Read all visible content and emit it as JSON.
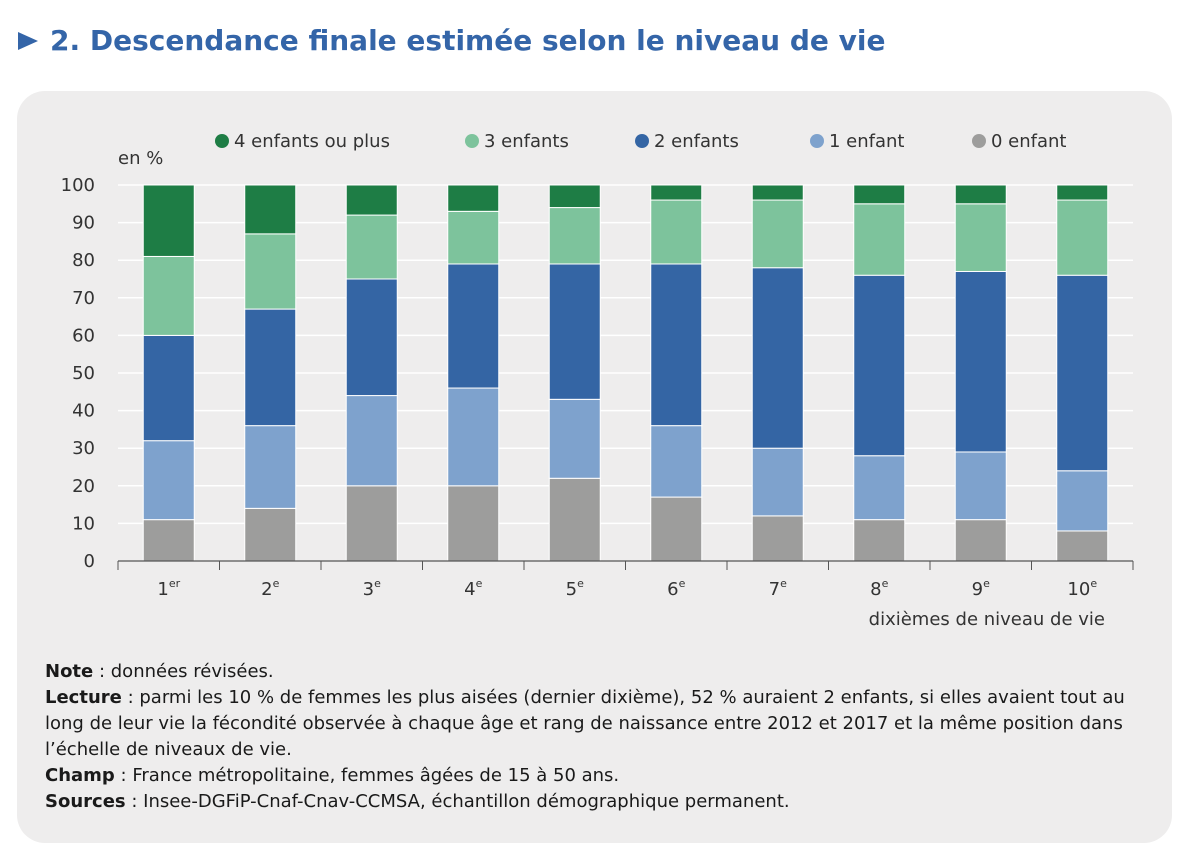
{
  "title": "2. Descendance finale estimée selon le niveau de vie",
  "chart_data": {
    "type": "bar",
    "stacked": true,
    "ylabel": "en %",
    "xlabel": "dixièmes de niveau de vie",
    "ylim": [
      0,
      100
    ],
    "yticks": [
      0,
      10,
      20,
      30,
      40,
      50,
      60,
      70,
      80,
      90,
      100
    ],
    "grid": true,
    "legend_position": "top",
    "categories": [
      {
        "num": "1",
        "sup": "er"
      },
      {
        "num": "2",
        "sup": "e"
      },
      {
        "num": "3",
        "sup": "e"
      },
      {
        "num": "4",
        "sup": "e"
      },
      {
        "num": "5",
        "sup": "e"
      },
      {
        "num": "6",
        "sup": "e"
      },
      {
        "num": "7",
        "sup": "e"
      },
      {
        "num": "8",
        "sup": "e"
      },
      {
        "num": "9",
        "sup": "e"
      },
      {
        "num": "10",
        "sup": "e"
      }
    ],
    "series": [
      {
        "name": "0 enfant",
        "color": "#9d9d9c",
        "values": [
          11,
          14,
          20,
          20,
          22,
          17,
          12,
          11,
          11,
          8
        ]
      },
      {
        "name": "1 enfant",
        "color": "#7ea2cd",
        "values": [
          21,
          22,
          24,
          26,
          21,
          19,
          18,
          17,
          18,
          16
        ]
      },
      {
        "name": "2 enfants",
        "color": "#3465a4",
        "values": [
          28,
          31,
          31,
          33,
          36,
          43,
          48,
          48,
          48,
          52
        ]
      },
      {
        "name": "3 enfants",
        "color": "#7dc39c",
        "values": [
          21,
          20,
          17,
          14,
          15,
          17,
          18,
          19,
          18,
          20
        ]
      },
      {
        "name": "4 enfants ou plus",
        "color": "#1e7d45",
        "values": [
          19,
          13,
          8,
          7,
          6,
          4,
          4,
          5,
          5,
          4
        ]
      }
    ],
    "legend_order": [
      "4 enfants ou plus",
      "3 enfants",
      "2 enfants",
      "1 enfant",
      "0 enfant"
    ]
  },
  "notes": {
    "note_label": "Note",
    "note_text": " : données révisées.",
    "lecture_label": "Lecture",
    "lecture_text": " : parmi les 10 % de femmes les plus aisées (dernier dixième), 52 % auraient 2 enfants, si elles avaient tout au long de leur vie la fécondité observée à chaque âge et rang de naissance entre 2012 et 2017 et la même position dans l’échelle de niveaux de vie.",
    "champ_label": "Champ",
    "champ_text": " : France métropolitaine, femmes âgées de 15 à 50 ans.",
    "sources_label": "Sources",
    "sources_text": " : Insee-DGFiP-Cnaf-Cnav-CCMSA, échantillon démographique permanent."
  }
}
